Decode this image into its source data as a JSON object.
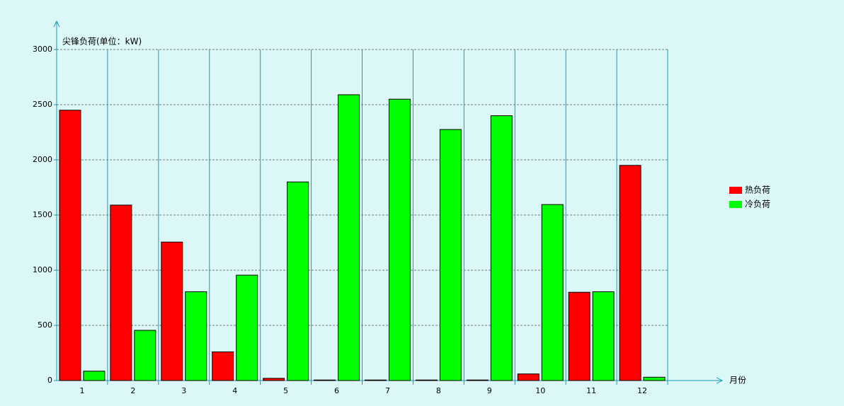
{
  "chart_data": {
    "type": "bar",
    "y_label": "尖锋负荷(单位：kW)",
    "x_label": "月份",
    "categories": [
      "1",
      "2",
      "3",
      "4",
      "5",
      "6",
      "7",
      "8",
      "9",
      "10",
      "11",
      "12"
    ],
    "series": [
      {
        "name": "热负荷",
        "color": "#ff0000",
        "values": [
          2450,
          1590,
          1255,
          260,
          20,
          5,
          5,
          5,
          5,
          60,
          800,
          1950
        ]
      },
      {
        "name": "冷负荷",
        "color": "#00ff00",
        "values": [
          85,
          455,
          805,
          955,
          1800,
          2590,
          2550,
          2275,
          2400,
          1595,
          805,
          30
        ]
      }
    ],
    "ylim": [
      0,
      3000
    ],
    "yticks": [
      0,
      500,
      1000,
      1500,
      2000,
      2500,
      3000
    ],
    "grid": true,
    "legend": "right"
  }
}
